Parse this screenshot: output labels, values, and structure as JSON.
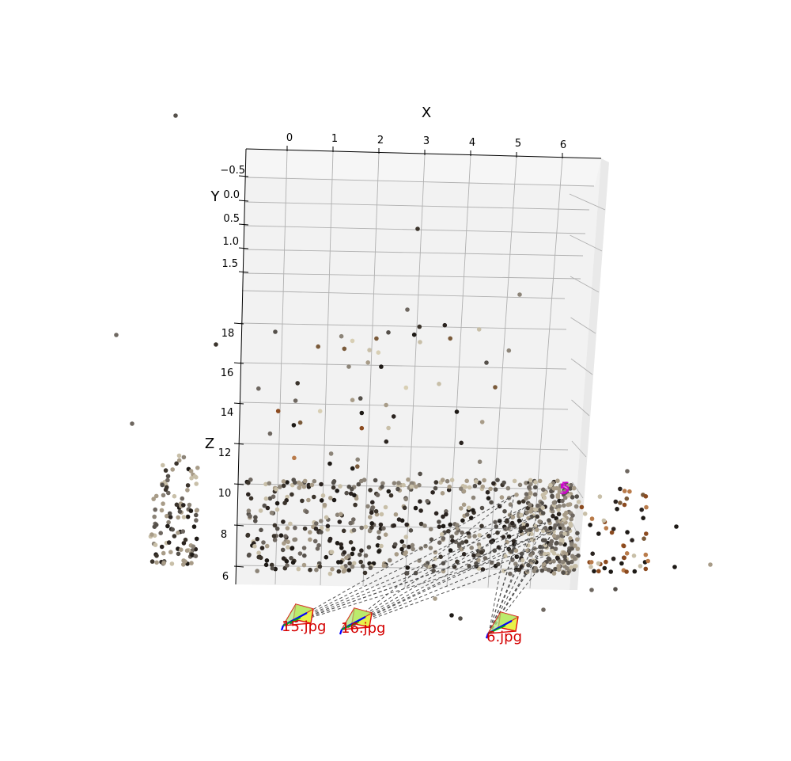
{
  "chart_data": {
    "type": "scatter",
    "projection": "3d",
    "title": "",
    "xlabel": "X",
    "ylabel": "Y",
    "zlabel": "Z",
    "x_ticks": [
      "0",
      "1",
      "2",
      "3",
      "4",
      "5",
      "6"
    ],
    "y_ticks": [
      "−0.5",
      "0.0",
      "0.5",
      "1.0",
      "1.5"
    ],
    "z_ticks": [
      "6",
      "8",
      "10",
      "12",
      "14",
      "16",
      "18"
    ],
    "xlim": [
      -0.5,
      6.7
    ],
    "ylim": [
      -0.7,
      1.7
    ],
    "zlim": [
      5.5,
      19.5
    ],
    "grid": true,
    "point_colors": [
      "#1e1a16",
      "#3b342c",
      "#55504a",
      "#6e6760",
      "#8c8478",
      "#a89c88",
      "#c8bfa8",
      "#2b2420",
      "#7a5a3a",
      "#8b4a1f",
      "#b97b4a",
      "#d8cfb4"
    ],
    "cameras": [
      {
        "label": "15.jpg",
        "frustum_color": "#e8f24a",
        "edge_color": "#e01010",
        "axis_colors": [
          "#0000ff",
          "#00bb00"
        ]
      },
      {
        "label": "16.jpg",
        "frustum_color": "#e8f24a",
        "edge_color": "#e01010",
        "axis_colors": [
          "#0000ff",
          "#00bb00"
        ]
      },
      {
        "label": "6.jpg",
        "frustum_color": "#e8f24a",
        "edge_color": "#e01010",
        "axis_colors": [
          "#0000ff",
          "#00bb00"
        ]
      }
    ],
    "marker_labels": [
      "5",
      "5"
    ],
    "marker_color": "#cc00cc"
  }
}
